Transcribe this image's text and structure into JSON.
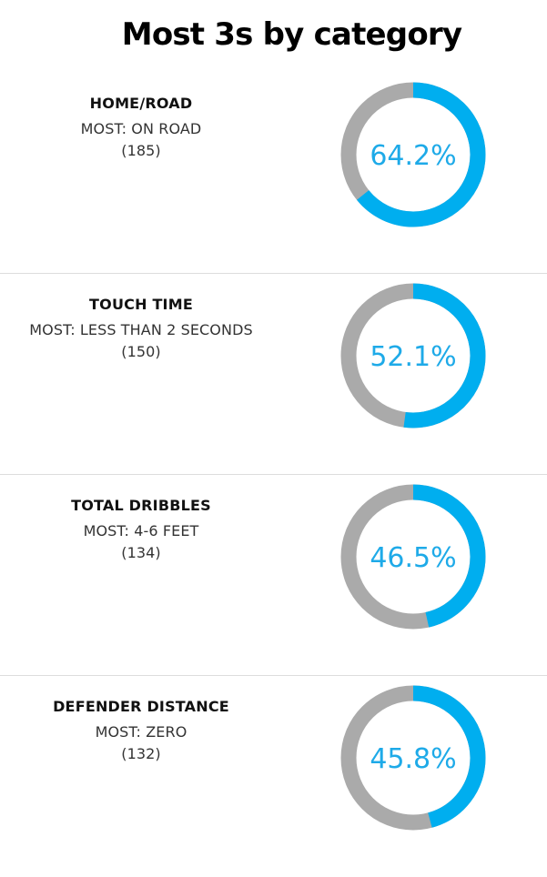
{
  "title": "Most 3s by category",
  "colors": {
    "accent": "#00aeef",
    "remainder": "#aaaaaa",
    "label": "#1eaae8"
  },
  "chart_data": {
    "type": "pie",
    "title": "Most 3s by category",
    "charts": [
      {
        "category": "HOME/ROAD",
        "most": "MOST: ON ROAD",
        "count": "(185)",
        "percent": 64.2,
        "percent_label": "64.2%"
      },
      {
        "category": "TOUCH TIME",
        "most": "MOST: LESS THAN 2 SECONDS",
        "count": "(150)",
        "percent": 52.1,
        "percent_label": "52.1%"
      },
      {
        "category": "TOTAL DRIBBLES",
        "most": "MOST: 4-6 FEET",
        "count": "(134)",
        "percent": 46.5,
        "percent_label": "46.5%"
      },
      {
        "category": "DEFENDER DISTANCE",
        "most": "MOST: ZERO",
        "count": "(132)",
        "percent": 45.8,
        "percent_label": "45.8%"
      }
    ]
  }
}
